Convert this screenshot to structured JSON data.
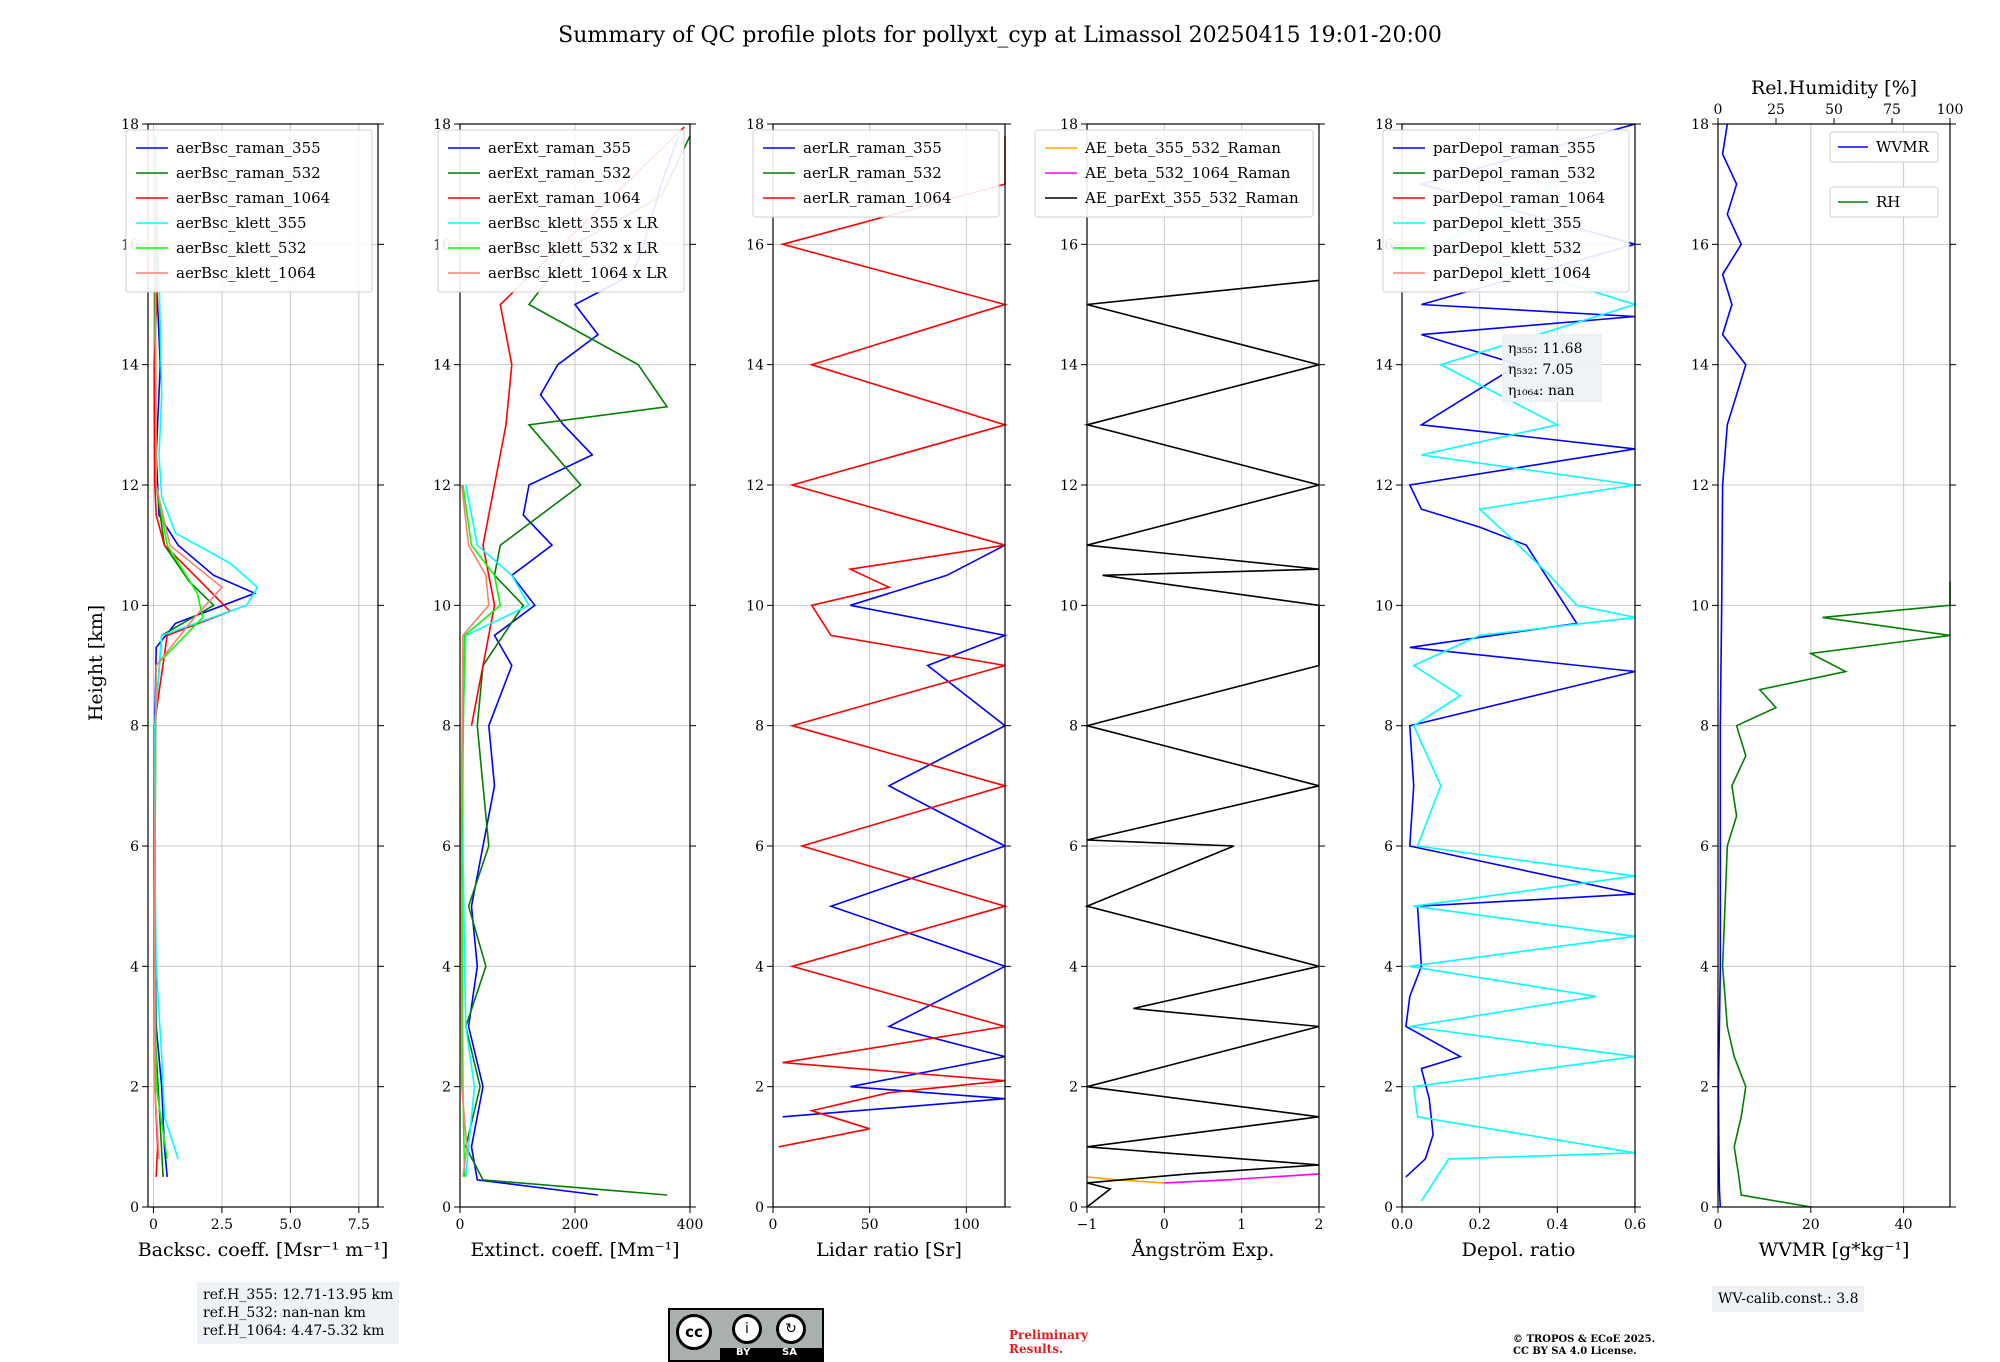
{
  "title": "Summary of QC profile plots for pollyxt_cyp at Limassol 20250415 19:01-20:00",
  "ylabel": "Height [km]",
  "footer": {
    "ref_lines": [
      "ref.H_355: 12.71-13.95 km",
      "ref.H_532: nan-nan km",
      "ref.H_1064: 4.47-5.32 km"
    ],
    "license": [
      "BY",
      "SA"
    ],
    "preliminary": [
      "Preliminary",
      "Results."
    ],
    "copyright": [
      "© TROPOS & ECoE 2025.",
      "CC BY SA 4.0 License."
    ],
    "wv_calib": "WV-calib.const.: 3.8"
  },
  "chart_data": [
    {
      "id": "bsc",
      "type": "line",
      "xlabel": "Backsc. coeff. [Msr⁻¹ m⁻¹]",
      "xlim": [
        -0.2,
        8.2
      ],
      "xticks": [
        0,
        2.5,
        5.0,
        7.5
      ],
      "xticklabels": [
        "0",
        "2.5",
        "5.0",
        "7.5"
      ],
      "ylim": [
        0,
        18
      ],
      "yticks": [
        0,
        2,
        4,
        6,
        8,
        10,
        12,
        14,
        16,
        18
      ],
      "legend": "top-right",
      "series": [
        {
          "name": "aerBsc_raman_355",
          "color": "#0000ff",
          "y": [
            0.5,
            1.0,
            2.0,
            3.0,
            5.0,
            8.0,
            9.3,
            9.7,
            10.2,
            10.5,
            11.0,
            11.5,
            12.5,
            14.0,
            15.5,
            17.8
          ],
          "x": [
            0.5,
            0.4,
            0.3,
            0.1,
            0.05,
            0.05,
            0.1,
            0.8,
            3.7,
            2.2,
            0.9,
            0.2,
            0.1,
            0.25,
            0.1,
            0.05
          ]
        },
        {
          "name": "aerBsc_raman_532",
          "color": "#008000",
          "y": [
            0.5,
            3.0,
            8.0,
            9.5,
            10.0,
            10.4,
            11.0,
            12.0,
            15.0,
            17.8
          ],
          "x": [
            0.35,
            0.05,
            0.05,
            0.3,
            2.2,
            1.3,
            0.4,
            0.1,
            0.05,
            0.03
          ]
        },
        {
          "name": "aerBsc_raman_1064",
          "color": "#ff0000",
          "y": [
            0.5,
            1.0,
            2.0,
            4.0,
            8.0,
            9.5,
            9.9,
            10.5,
            11.0,
            11.5,
            12.0,
            14.0,
            15.5,
            17.8
          ],
          "x": [
            0.1,
            0.15,
            0.05,
            0.02,
            0.03,
            0.5,
            2.8,
            1.5,
            0.4,
            0.1,
            0.05,
            0.03,
            0.15,
            0.05
          ]
        },
        {
          "name": "aerBsc_klett_355",
          "color": "#00ffff",
          "y": [
            0.8,
            1.5,
            2.5,
            4.0,
            6.0,
            8.0,
            9.5,
            10.0,
            10.3,
            10.7,
            11.2,
            11.8,
            12.5,
            13.5,
            14.5,
            15.5,
            17.8
          ],
          "x": [
            0.9,
            0.4,
            0.3,
            0.1,
            0.05,
            0.05,
            0.3,
            3.4,
            3.8,
            2.8,
            0.8,
            0.3,
            0.2,
            0.3,
            0.25,
            0.2,
            0.1
          ]
        },
        {
          "name": "aerBsc_klett_532",
          "color": "#00ff00",
          "y": [
            0.8,
            2.0,
            5.0,
            9.0,
            9.8,
            10.2,
            11.0,
            12.0,
            17.8
          ],
          "x": [
            0.5,
            0.1,
            0.05,
            0.1,
            1.8,
            1.6,
            0.5,
            0.1,
            0.05
          ]
        },
        {
          "name": "aerBsc_klett_1064",
          "color": "#fa8072",
          "y": [
            0.8,
            2.0,
            5.0,
            9.0,
            9.8,
            10.3,
            11.0,
            12.0,
            17.8
          ],
          "x": [
            0.2,
            0.05,
            0.03,
            0.1,
            1.5,
            2.5,
            0.6,
            0.1,
            0.05
          ]
        }
      ]
    },
    {
      "id": "ext",
      "type": "line",
      "xlabel": "Extinct. coeff. [Mm⁻¹]",
      "xlim": [
        0,
        400
      ],
      "xticks": [
        0,
        200,
        400
      ],
      "xticklabels": [
        "0",
        "200",
        "400"
      ],
      "ylim": [
        0,
        18
      ],
      "yticks": [
        0,
        2,
        4,
        6,
        8,
        10,
        12,
        14,
        16,
        18
      ],
      "legend": "top-right",
      "series": [
        {
          "name": "aerExt_raman_355",
          "color": "#0000ff",
          "y": [
            0.2,
            0.45,
            1.0,
            2.0,
            3.0,
            4.0,
            5.0,
            6.0,
            7.0,
            8.0,
            9.0,
            9.5,
            10.0,
            10.5,
            11.0,
            11.5,
            12.0,
            12.5,
            13.0,
            13.5,
            14.0,
            14.5,
            15.0,
            15.5,
            16.0,
            17.0,
            17.8
          ],
          "x": [
            240,
            30,
            20,
            40,
            15,
            30,
            20,
            40,
            60,
            50,
            90,
            60,
            130,
            90,
            160,
            110,
            120,
            230,
            180,
            140,
            170,
            240,
            200,
            300,
            320,
            350,
            380
          ]
        },
        {
          "name": "aerExt_raman_532",
          "color": "#008000",
          "y": [
            0.2,
            0.45,
            1.0,
            2.0,
            3.0,
            4.0,
            5.0,
            6.0,
            7.0,
            8.0,
            9.0,
            10.0,
            10.5,
            11.0,
            12.0,
            13.0,
            13.3,
            14.0,
            15.0,
            16.0,
            16.8,
            17.8
          ],
          "x": [
            360,
            40,
            10,
            35,
            10,
            45,
            15,
            50,
            40,
            30,
            40,
            110,
            60,
            70,
            210,
            120,
            360,
            310,
            120,
            200,
            350,
            400
          ]
        },
        {
          "name": "aerExt_raman_1064",
          "color": "#ff0000",
          "y": [
            8.0,
            9.0,
            10.0,
            11.0,
            12.0,
            13.0,
            14.0,
            15.0,
            17.95
          ],
          "x": [
            20,
            40,
            60,
            40,
            60,
            80,
            90,
            70,
            390
          ]
        },
        {
          "name": "aerBsc_klett_355 x LR",
          "color": "#00ffff",
          "y": [
            0.5,
            1.0,
            1.5,
            2.0,
            3.0,
            4.0,
            6.0,
            8.0,
            9.5,
            10.0,
            10.5,
            11.0,
            12.0
          ],
          "x": [
            10,
            15,
            20,
            25,
            10,
            8,
            5,
            5,
            10,
            120,
            90,
            30,
            10
          ]
        },
        {
          "name": "aerBsc_klett_532 x LR",
          "color": "#00ff00",
          "y": [
            0.5,
            2.0,
            6.0,
            9.5,
            10.0,
            10.5,
            11.0,
            12.0
          ],
          "x": [
            8,
            5,
            3,
            8,
            70,
            60,
            20,
            5
          ]
        },
        {
          "name": "aerBsc_klett_1064 x LR",
          "color": "#fa8072",
          "y": [
            0.5,
            1.0,
            2.0,
            6.0,
            9.5,
            10.0,
            10.5,
            11.0,
            12.0
          ],
          "x": [
            5,
            12,
            3,
            2,
            5,
            50,
            45,
            15,
            3
          ]
        }
      ]
    },
    {
      "id": "lr",
      "type": "line",
      "xlabel": "Lidar ratio [Sr]",
      "xlim": [
        0,
        120
      ],
      "xticks": [
        0,
        50,
        100
      ],
      "xticklabels": [
        "0",
        "50",
        "100"
      ],
      "ylim": [
        0,
        18
      ],
      "yticks": [
        0,
        2,
        4,
        6,
        8,
        10,
        12,
        14,
        16,
        18
      ],
      "legend": "top-right",
      "series": [
        {
          "name": "aerLR_raman_355",
          "color": "#0000ff",
          "y": [
            1.5,
            1.8,
            2.0,
            2.5,
            3.0,
            4.0,
            5.0,
            6.0,
            7.0,
            8.0,
            9.0,
            9.5,
            10.0,
            10.5,
            11.0
          ],
          "x": [
            5,
            120,
            40,
            120,
            60,
            120,
            30,
            120,
            60,
            120,
            80,
            120,
            40,
            90,
            120
          ]
        },
        {
          "name": "aerLR_raman_532",
          "color": "#008000",
          "y": [],
          "x": []
        },
        {
          "name": "aerLR_raman_1064",
          "color": "#ff0000",
          "y": [
            1.0,
            1.3,
            1.6,
            1.9,
            2.1,
            2.4,
            3.0,
            4.0,
            5.0,
            6.0,
            7.0,
            8.0,
            9.0,
            9.5,
            10.0,
            10.3,
            10.6,
            11.0,
            12.0,
            13.0,
            14.0,
            15.0,
            16.0,
            17.0,
            17.8
          ],
          "x": [
            3,
            50,
            20,
            60,
            120,
            5,
            120,
            10,
            120,
            15,
            120,
            10,
            120,
            30,
            20,
            60,
            40,
            120,
            10,
            120,
            20,
            120,
            5,
            120,
            120
          ]
        }
      ]
    },
    {
      "id": "ang",
      "type": "line",
      "xlabel": "Ångström Exp.",
      "xlim": [
        -1,
        2
      ],
      "xticks": [
        -1,
        0,
        1,
        2
      ],
      "xticklabels": [
        "−1",
        "0",
        "1",
        "2"
      ],
      "ylim": [
        0,
        18
      ],
      "yticks": [
        0,
        2,
        4,
        6,
        8,
        10,
        12,
        14,
        16,
        18
      ],
      "legend": "top-left",
      "series": [
        {
          "name": "AE_beta_355_532_Raman",
          "color": "#ffa500",
          "y": [
            0.4,
            0.45,
            0.5
          ],
          "x": [
            0.0,
            -0.6,
            -1.0
          ]
        },
        {
          "name": "AE_beta_532_1064_Raman",
          "color": "#ff00ff",
          "y": [
            0.4,
            0.45,
            0.55
          ],
          "x": [
            0.0,
            0.8,
            2.0
          ]
        },
        {
          "name": "AE_parExt_355_532_Raman",
          "color": "#000000",
          "y": [
            0.0,
            0.3,
            0.4,
            0.55,
            0.7,
            1.0,
            1.5,
            2.0,
            3.0,
            3.3,
            4.0,
            5.0,
            6.0,
            6.1,
            7.0,
            8.0,
            9.0,
            10.0,
            10.5,
            10.6,
            11.0,
            12.0,
            13.0,
            14.0,
            15.0,
            15.4
          ],
          "x": [
            -1,
            -0.7,
            -1,
            0.3,
            2,
            -1,
            2,
            -1,
            2,
            -0.4,
            2,
            -1,
            0.9,
            -1,
            2,
            -1,
            2,
            2,
            -0.8,
            2,
            -1,
            2,
            -1,
            2,
            -1,
            2
          ]
        }
      ]
    },
    {
      "id": "depol",
      "type": "line",
      "xlabel": "Depol. ratio",
      "xlim": [
        0,
        0.6
      ],
      "xticks": [
        0,
        0.2,
        0.4,
        0.6
      ],
      "xticklabels": [
        "0.0",
        "0.2",
        "0.4",
        "0.6"
      ],
      "ylim": [
        0,
        18
      ],
      "yticks": [
        0,
        2,
        4,
        6,
        8,
        10,
        12,
        14,
        16,
        18
      ],
      "legend": "top-right",
      "annotations": [
        "η₃₅₅: 11.68",
        "η₅₃₂: 7.05",
        "η₁₀₆₄: nan"
      ],
      "series": [
        {
          "name": "parDepol_raman_355",
          "color": "#0000ff",
          "y": [
            0.5,
            0.8,
            1.2,
            1.8,
            2.3,
            2.5,
            3.0,
            3.5,
            4.0,
            5.0,
            5.2,
            6.0,
            7.0,
            8.0,
            8.9,
            9.3,
            9.7,
            10.0,
            10.5,
            11.0,
            11.3,
            11.6,
            12.0,
            12.6,
            13.0,
            14.0,
            14.5,
            14.8,
            15.0,
            16.0,
            17.0,
            18.0
          ],
          "x": [
            0.01,
            0.06,
            0.08,
            0.07,
            0.05,
            0.15,
            0.01,
            0.02,
            0.05,
            0.04,
            0.6,
            0.02,
            0.03,
            0.02,
            0.6,
            0.02,
            0.45,
            0.42,
            0.37,
            0.32,
            0.2,
            0.05,
            0.02,
            0.6,
            0.05,
            0.3,
            0.05,
            0.6,
            0.05,
            0.6,
            0.05,
            0.6
          ]
        },
        {
          "name": "parDepol_raman_532",
          "color": "#008000",
          "y": [],
          "x": []
        },
        {
          "name": "parDepol_raman_1064",
          "color": "#ff0000",
          "y": [],
          "x": []
        },
        {
          "name": "parDepol_klett_355",
          "color": "#00ffff",
          "y": [
            0.1,
            0.8,
            0.9,
            1.5,
            2.0,
            2.5,
            3.0,
            3.5,
            4.0,
            4.5,
            5.0,
            5.5,
            6.0,
            7.0,
            8.0,
            8.5,
            9.0,
            9.5,
            9.8,
            10.0,
            10.5,
            11.0,
            11.3,
            11.6,
            12.0,
            12.5,
            13.0,
            14.0,
            15.0,
            16.0,
            17.0
          ],
          "x": [
            0.05,
            0.12,
            0.6,
            0.04,
            0.03,
            0.6,
            0.02,
            0.5,
            0.02,
            0.6,
            0.03,
            0.6,
            0.04,
            0.1,
            0.03,
            0.15,
            0.03,
            0.2,
            0.6,
            0.45,
            0.38,
            0.3,
            0.25,
            0.2,
            0.6,
            0.05,
            0.4,
            0.1,
            0.6,
            0.1,
            0.4
          ]
        },
        {
          "name": "parDepol_klett_532",
          "color": "#00ff00",
          "y": [],
          "x": []
        },
        {
          "name": "parDepol_klett_1064",
          "color": "#fa8072",
          "y": [],
          "x": []
        }
      ]
    },
    {
      "id": "wv",
      "type": "line",
      "xlabel": "WVMR [g*kg⁻¹]",
      "xlim": [
        0,
        50
      ],
      "xticks": [
        0,
        20,
        40
      ],
      "xticklabels": [
        "0",
        "20",
        "40"
      ],
      "ylim": [
        0,
        18
      ],
      "yticks": [
        0,
        2,
        4,
        6,
        8,
        10,
        12,
        14,
        16,
        18
      ],
      "x2label": "Rel.Humidity [%]",
      "x2lim": [
        0,
        100
      ],
      "x2ticks": [
        0,
        25,
        50,
        75,
        100
      ],
      "legend": "top-right",
      "series": [
        {
          "name": "WVMR",
          "color": "#0000ff",
          "y": [
            0.0,
            0.3,
            1.0,
            2.0,
            3.0,
            4.0,
            6.0,
            8.0,
            10.0,
            12.0,
            13.0,
            14.0,
            14.5,
            15.0,
            15.5,
            16.0,
            16.5,
            17.0,
            17.5,
            18.0
          ],
          "x": [
            0.5,
            0.3,
            0.2,
            0.1,
            0.3,
            0.5,
            0.5,
            0.5,
            0.8,
            1.0,
            2.0,
            6.0,
            1.0,
            3.0,
            1.0,
            5.0,
            2.0,
            4.0,
            1.0,
            2.0
          ]
        },
        {
          "name": "RH",
          "color": "#008000",
          "y": [
            0.0,
            0.2,
            0.5,
            1.0,
            1.5,
            2.0,
            2.5,
            3.0,
            3.5,
            4.0,
            5.0,
            6.0,
            6.5,
            7.0,
            7.5,
            8.0,
            8.3,
            8.6,
            8.9,
            9.2,
            9.5,
            9.8,
            10.0,
            10.4
          ],
          "x": [
            40,
            10,
            9,
            7,
            10,
            12,
            7,
            4,
            3,
            2,
            3,
            4,
            8,
            6,
            12,
            8,
            25,
            18,
            55,
            40,
            100,
            45,
            100,
            100
          ]
        }
      ]
    }
  ]
}
